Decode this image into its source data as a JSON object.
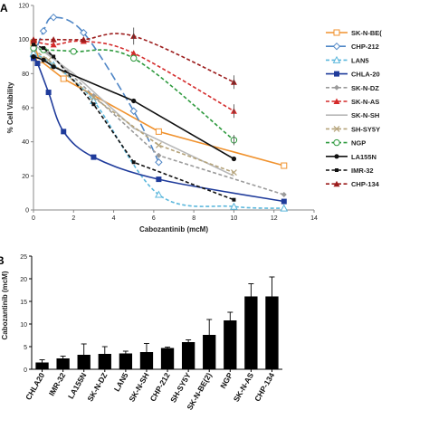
{
  "chart_data": [
    {
      "type": "line",
      "panel_label": "A",
      "title": "",
      "xlabel": "Cabozantinib (mcM)",
      "ylabel": "% Cell Viability",
      "xlim": [
        0,
        14
      ],
      "ylim": [
        0,
        120
      ],
      "x_ticks": [
        0,
        2,
        4,
        6,
        8,
        10,
        12,
        14
      ],
      "y_ticks": [
        0,
        20,
        40,
        60,
        80,
        100,
        120
      ],
      "grid": false,
      "legend": "right",
      "series": [
        {
          "name": "SK-N-BE(",
          "color": "#f0922e",
          "marker": "square-open",
          "dash": "solid",
          "smooth": false,
          "x": [
            0,
            0.3,
            1.5,
            6.25,
            12.5
          ],
          "y": [
            98,
            88,
            77,
            46,
            26
          ]
        },
        {
          "name": "CHP-212",
          "color": "#4f86c6",
          "marker": "diamond-open",
          "dash": "longdash",
          "smooth": true,
          "x": [
            0,
            0.5,
            1,
            2.5,
            5,
            6.25
          ],
          "y": [
            90,
            105,
            113,
            104,
            58,
            28
          ]
        },
        {
          "name": "LAN5",
          "color": "#5bb7dc",
          "marker": "triangle-open",
          "dash": "dash",
          "smooth": true,
          "x": [
            0,
            1,
            3,
            6.25,
            10,
            12.5
          ],
          "y": [
            92,
            85,
            64,
            9,
            2,
            1
          ]
        },
        {
          "name": "CHLA-20",
          "color": "#1f3b9b",
          "marker": "square",
          "dash": "solid",
          "smooth": true,
          "x": [
            0,
            0.2,
            0.75,
            1.5,
            3,
            6.25,
            12.5
          ],
          "y": [
            89,
            86,
            69,
            46,
            31,
            18,
            5
          ]
        },
        {
          "name": "SK-N-DZ",
          "color": "#9a9a9a",
          "marker": "diamond",
          "dash": "dash",
          "smooth": false,
          "x": [
            0,
            0.75,
            3,
            6.25,
            12.5
          ],
          "y": [
            96,
            92,
            67,
            32,
            9
          ]
        },
        {
          "name": "SK-N-AS",
          "color": "#d42a2a",
          "marker": "triangle",
          "dash": "dash",
          "smooth": true,
          "x": [
            0,
            1,
            2.5,
            5,
            10
          ],
          "y": [
            99,
            97,
            99,
            92,
            58
          ]
        },
        {
          "name": "SK-N-SH",
          "color": "#b8b8b8",
          "marker": "none",
          "dash": "solid",
          "smooth": false,
          "x": [
            0,
            0.5,
            2,
            5,
            10
          ],
          "y": [
            97,
            93,
            80,
            48,
            20
          ]
        },
        {
          "name": "SH-SY5Y",
          "color": "#b5a37a",
          "marker": "cross",
          "dash": "dash",
          "smooth": false,
          "x": [
            0,
            0.75,
            3,
            6.25,
            10
          ],
          "y": [
            94,
            88,
            66,
            38,
            22
          ]
        },
        {
          "name": "NGP",
          "color": "#2e9a3e",
          "marker": "circle-open",
          "dash": "dash",
          "smooth": true,
          "x": [
            0,
            0.5,
            2,
            5,
            10
          ],
          "y": [
            95,
            94,
            93,
            89,
            41
          ]
        },
        {
          "name": "LA155N",
          "color": "#111111",
          "marker": "circle",
          "dash": "solid",
          "smooth": false,
          "x": [
            0,
            0.5,
            1,
            5,
            10
          ],
          "y": [
            90,
            88,
            84,
            64,
            30
          ]
        },
        {
          "name": "IMR-32",
          "color": "#111111",
          "marker": "square-small",
          "dash": "dash",
          "smooth": false,
          "x": [
            0,
            0.5,
            1,
            3,
            5,
            10
          ],
          "y": [
            97,
            95,
            90,
            62,
            28,
            6
          ]
        },
        {
          "name": "CHP-134",
          "color": "#9b1b1b",
          "marker": "triangle",
          "dash": "dash",
          "smooth": true,
          "x": [
            0,
            1,
            2.5,
            5,
            10
          ],
          "y": [
            100,
            100,
            100,
            102,
            75
          ]
        }
      ]
    },
    {
      "type": "bar",
      "panel_label": "B",
      "title": "",
      "ylabel": "Cabozantinib (mcM)",
      "ylim": [
        0,
        25
      ],
      "y_ticks": [
        0,
        5,
        10,
        15,
        20,
        25
      ],
      "grid": false,
      "color": "#000000",
      "categories": [
        "CHLA20",
        "IMR-32",
        "LA155N",
        "SK-N-DZ",
        "LAN5",
        "SK-N-SH",
        "CHP-212",
        "SH-SY5Y",
        "SK-N-BE(2)",
        "NGP",
        "SK-N-AS",
        "CHP-134"
      ],
      "values": [
        1.5,
        2.4,
        3.2,
        3.4,
        3.5,
        3.8,
        4.7,
        6.0,
        7.6,
        10.8,
        16.1,
        16.1
      ],
      "errors": [
        0.6,
        0.5,
        2.4,
        1.6,
        0.5,
        1.9,
        0.2,
        0.5,
        3.4,
        1.8,
        2.8,
        4.3
      ]
    }
  ]
}
